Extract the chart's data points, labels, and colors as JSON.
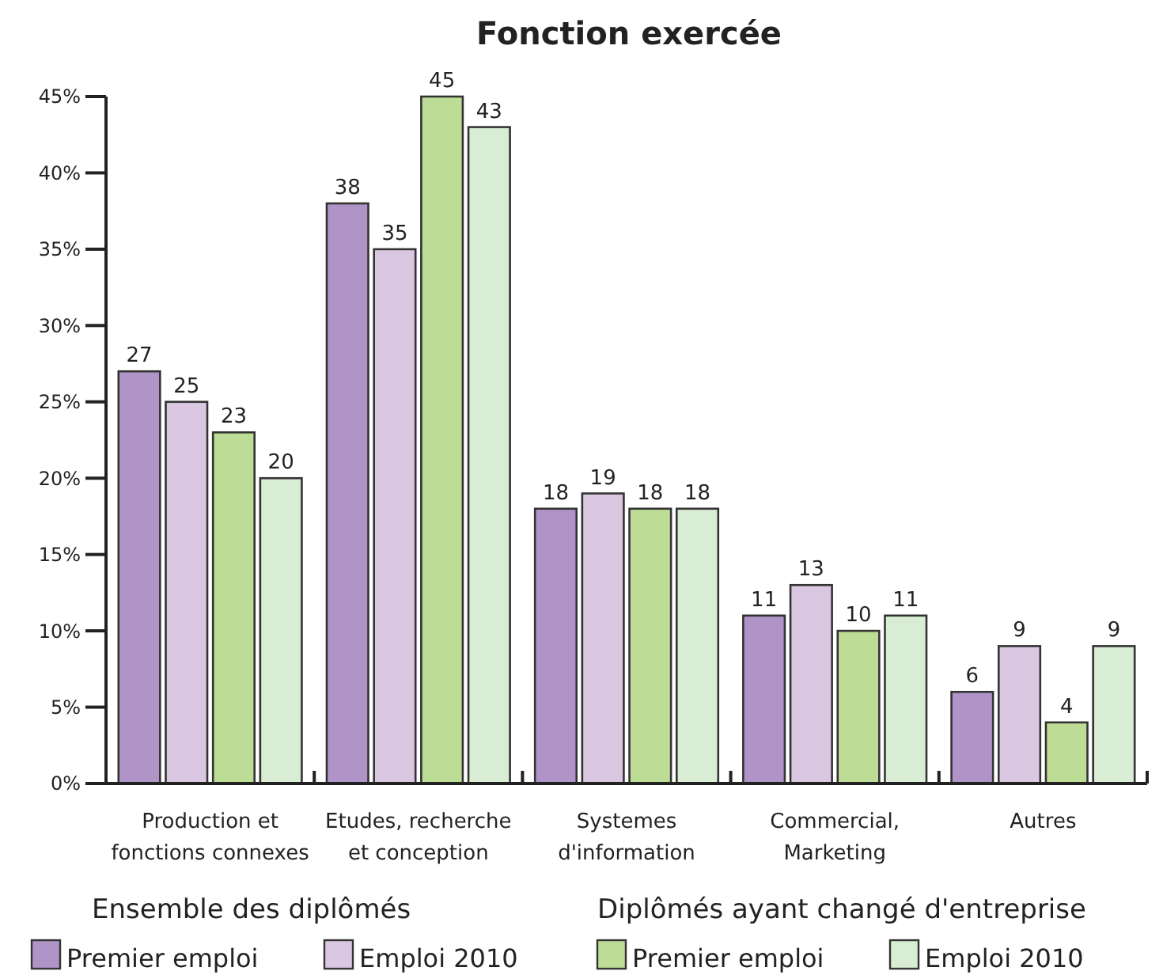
{
  "chart_data": {
    "type": "bar",
    "title": "Fonction exercée",
    "categories": [
      "Production et fonctions connexes",
      "Etudes, recherche et conception",
      "Systemes d'information",
      "Commercial, Marketing",
      "Autres"
    ],
    "series": [
      {
        "name": "Premier emploi",
        "color": "#b094c8",
        "values": [
          27,
          38,
          18,
          11,
          6
        ]
      },
      {
        "name": "Emploi 2010",
        "color": "#dac8e2",
        "values": [
          25,
          35,
          19,
          13,
          9
        ]
      },
      {
        "name": "Premier emploi",
        "color": "#bddc96",
        "values": [
          23,
          45,
          18,
          10,
          4
        ]
      },
      {
        "name": "Emploi 2010",
        "color": "#d9ecd4",
        "values": [
          20,
          43,
          18,
          11,
          9
        ]
      }
    ],
    "ylim": [
      0,
      45
    ],
    "yticks": [
      {
        "value": 0,
        "label": "0%"
      },
      {
        "value": 5,
        "label": "5%"
      },
      {
        "value": 10,
        "label": "10%"
      },
      {
        "value": 15,
        "label": "15%"
      },
      {
        "value": 20,
        "label": "20%"
      },
      {
        "value": 25,
        "label": "25%"
      },
      {
        "value": 30,
        "label": "30%"
      },
      {
        "value": 35,
        "label": "35%"
      },
      {
        "value": 40,
        "label": "40%"
      },
      {
        "value": 45,
        "label": "45%"
      }
    ],
    "data_labels": true,
    "grid": false,
    "legend": "bottom",
    "annotations": [
      "Ensemble des diplômés",
      "Diplômés ayant changé d'entreprise"
    ]
  }
}
